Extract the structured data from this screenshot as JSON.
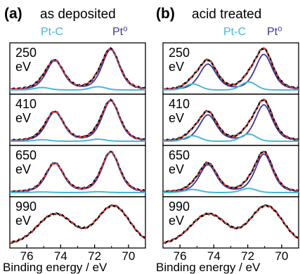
{
  "colors": {
    "data": "#000000",
    "fit": "#e8413c",
    "pt0": "#3d3694",
    "ptc": "#4bb7d6",
    "frame": "#000000"
  },
  "chart_data": [
    {
      "type": "line",
      "panel_label": "(a)",
      "title": "as deposited",
      "legend": [
        "Pt-C",
        "Pt⁰"
      ],
      "xlabel": "Binding energy / eV",
      "x_reversed": true,
      "xlim": [
        77,
        69
      ],
      "xticks": [
        "76",
        "74",
        "72",
        "70"
      ],
      "ylabel": "",
      "series": [
        "data",
        "fit",
        "Pt⁰",
        "Pt-C"
      ],
      "rows": [
        {
          "label_top": "250",
          "label_bottom": "eV",
          "pt0_scale": 1.0,
          "ptc_amp": 0.08
        },
        {
          "label_top": "410",
          "label_bottom": "eV",
          "pt0_scale": 1.0,
          "ptc_amp": 0.05
        },
        {
          "label_top": "650",
          "label_bottom": "eV",
          "pt0_scale": 1.0,
          "ptc_amp": 0.02
        },
        {
          "label_top": "990",
          "label_bottom": "eV",
          "pt0_scale": 0.0,
          "ptc_amp": 0.0
        }
      ]
    },
    {
      "type": "line",
      "panel_label": "(b)",
      "title": "acid  treated",
      "legend": [
        "Pt-C",
        "Pt⁰"
      ],
      "xlabel": "Binding energy / eV",
      "x_reversed": true,
      "xlim": [
        77,
        69
      ],
      "xticks": [
        "76",
        "74",
        "72",
        "70"
      ],
      "ylabel": "",
      "series": [
        "data",
        "fit",
        "Pt⁰",
        "Pt-C"
      ],
      "rows": [
        {
          "label_top": "250",
          "label_bottom": "eV",
          "pt0_scale": 0.88,
          "ptc_amp": 0.2
        },
        {
          "label_top": "410",
          "label_bottom": "eV",
          "pt0_scale": 0.9,
          "ptc_amp": 0.18
        },
        {
          "label_top": "650",
          "label_bottom": "eV",
          "pt0_scale": 0.95,
          "ptc_amp": 0.1
        },
        {
          "label_top": "990",
          "label_bottom": "eV",
          "pt0_scale": 0.0,
          "ptc_amp": 0.0
        }
      ]
    }
  ]
}
